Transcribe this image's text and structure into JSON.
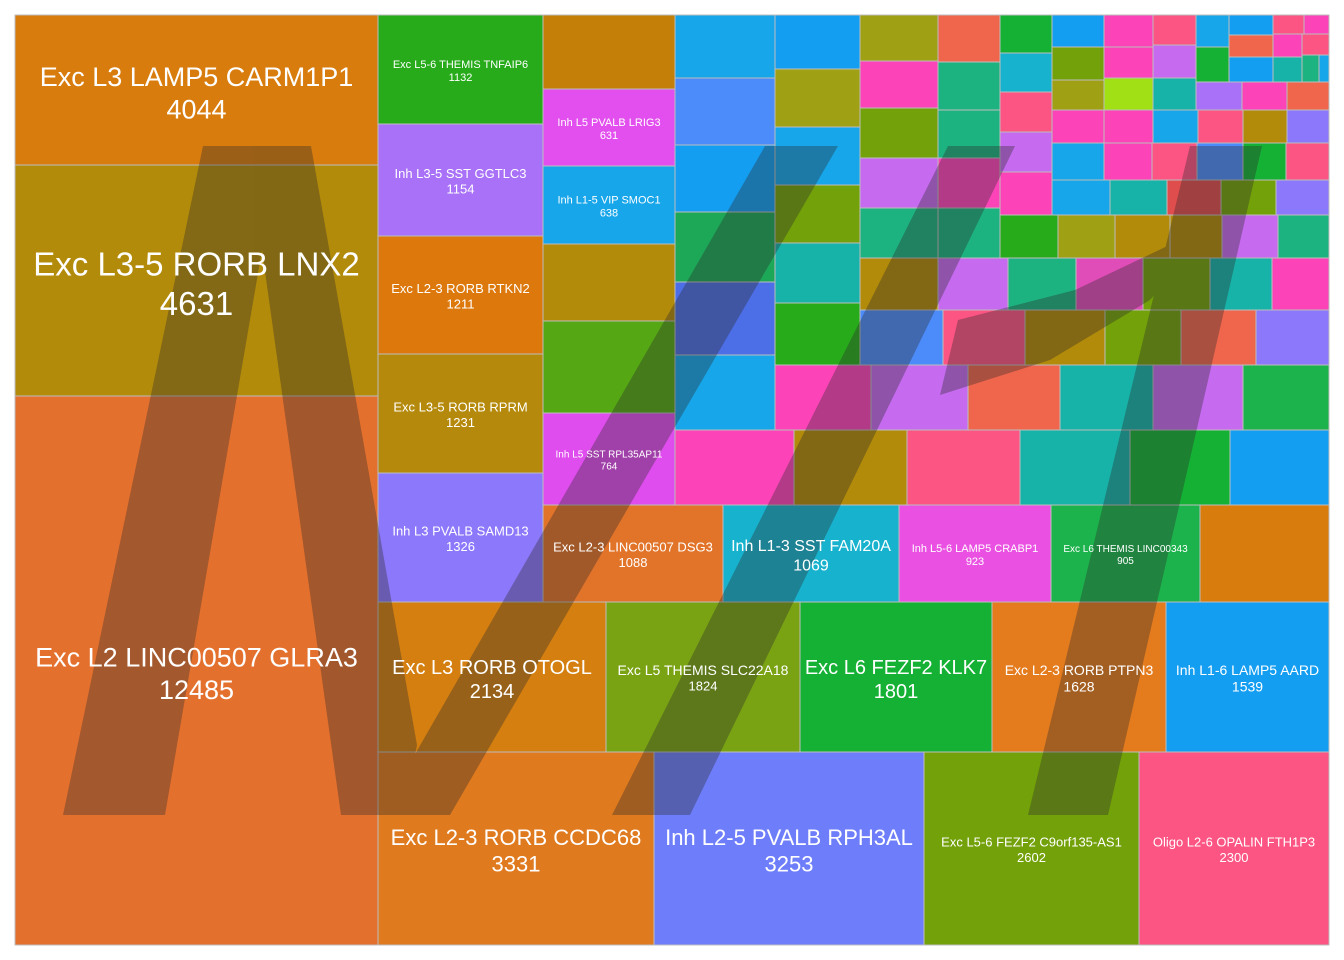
{
  "chart_data": {
    "type": "treemap",
    "title": "",
    "labeled_cells": [
      {
        "label": "Exc L2 LINC00507 GLRA3",
        "value": 12485,
        "color": "#E4702E"
      },
      {
        "label": "Exc L3-5 RORB LNX2",
        "value": 4631,
        "color": "#B38B0A"
      },
      {
        "label": "Exc L3 LAMP5 CARM1P1",
        "value": 4044,
        "color": "#D87C0E"
      },
      {
        "label": "Exc L2-3 RORB CCDC68",
        "value": 3331,
        "color": "#E07A1E"
      },
      {
        "label": "Inh L2-5 PVALB RPH3AL",
        "value": 3253,
        "color": "#6E7EFA"
      },
      {
        "label": "Exc L5-6 FEZF2 C9orf135-AS1",
        "value": 2602,
        "color": "#73A10A"
      },
      {
        "label": "Oligo L2-6 OPALIN FTH1P3",
        "value": 2300,
        "color": "#FC5483"
      },
      {
        "label": "Exc L3 RORB OTOGL",
        "value": 2134,
        "color": "#D47F10"
      },
      {
        "label": "Exc L5 THEMIS SLC22A18",
        "value": 1824,
        "color": "#7AA314"
      },
      {
        "label": "Exc L6 FEZF2 KLK7",
        "value": 1801,
        "color": "#15B135"
      },
      {
        "label": "Exc L2-3 RORB PTPN3",
        "value": 1628,
        "color": "#E47C1E"
      },
      {
        "label": "Inh L1-6 LAMP5 AARD",
        "value": 1539,
        "color": "#149EF2"
      },
      {
        "label": "Inh L3 PVALB SAMD13",
        "value": 1326,
        "color": "#8C78FA"
      },
      {
        "label": "Exc L3-5 RORB RPRM",
        "value": 1231,
        "color": "#B5890C"
      },
      {
        "label": "Exc L2-3 RORB RTKN2",
        "value": 1211,
        "color": "#DC780C"
      },
      {
        "label": "Inh L3-5 SST GGTLC3",
        "value": 1154,
        "color": "#A871F8"
      },
      {
        "label": "Exc L5-6 THEMIS TNFAIP6",
        "value": 1132,
        "color": "#27AB1B"
      },
      {
        "label": "Exc L2-3 LINC00507 DSG3",
        "value": 1088,
        "color": "#E2742A"
      },
      {
        "label": "Inh L1-3 SST FAM20A",
        "value": 1069,
        "color": "#17B2CE"
      },
      {
        "label": "Inh L5-6 LAMP5 CRABP1",
        "value": 923,
        "color": "#EA51E2"
      },
      {
        "label": "Exc L6 THEMIS LINC00343",
        "value": 905,
        "color": "#1DB34C"
      },
      {
        "label": "Inh L5 SST RPL35AP11",
        "value": 764,
        "color": "#E04DEE"
      },
      {
        "label": "Inh L1-5 VIP SMOC1",
        "value": 638,
        "color": "#17A6EA"
      },
      {
        "label": "Inh L5 PVALB LRIG3",
        "value": 631,
        "color": "#E24FEE"
      }
    ]
  }
}
